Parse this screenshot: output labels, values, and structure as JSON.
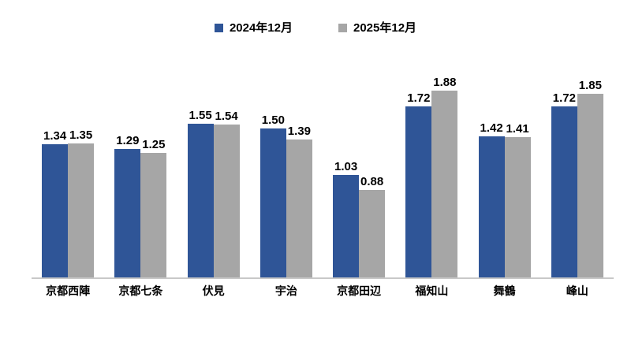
{
  "chart_data": {
    "type": "bar",
    "title": "",
    "xlabel": "",
    "ylabel": "",
    "ylim": [
      0,
      2.0
    ],
    "grid": false,
    "legend_position": "top",
    "data_labels": true,
    "value_format": "0.00",
    "categories": [
      "京都西陣",
      "京都七条",
      "伏見",
      "宇治",
      "京都田辺",
      "福知山",
      "舞鶴",
      "峰山"
    ],
    "series": [
      {
        "name": "2024年12月",
        "color": "#2F5597",
        "values": [
          1.34,
          1.29,
          1.55,
          1.5,
          1.03,
          1.72,
          1.42,
          1.72
        ]
      },
      {
        "name": "2025年12月",
        "color": "#A6A6A6",
        "values": [
          1.35,
          1.25,
          1.54,
          1.39,
          0.88,
          1.88,
          1.41,
          1.85
        ]
      }
    ],
    "colors": {
      "axis_line": "#c8c8c8",
      "label_text": "#000000",
      "background": "#ffffff"
    }
  }
}
